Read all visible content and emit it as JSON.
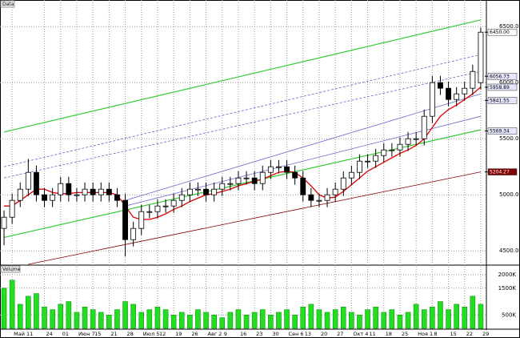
{
  "chart_data": {
    "type": "candlestick",
    "title": "Data",
    "categories": [
      null,
      "Май 11",
      null,
      null,
      null,
      "24",
      null,
      "01",
      null,
      "Июн 7",
      null,
      "15",
      null,
      "21",
      null,
      "28",
      null,
      "Июл 5",
      null,
      "12",
      null,
      "19",
      null,
      "26",
      null,
      "Авг 2",
      null,
      "9",
      null,
      "16",
      null,
      "23",
      null,
      "30",
      null,
      "Сен 6",
      null,
      "13",
      null,
      "20",
      null,
      "27",
      null,
      "Окт 4",
      null,
      "11",
      null,
      "18",
      null,
      "25",
      null,
      "Ноя 1",
      null,
      "8",
      null,
      "15",
      null,
      "22",
      null,
      "29"
    ],
    "open": [
      4700,
      4800,
      4950,
      5050,
      5200,
      5000,
      4950,
      5000,
      5100,
      5000,
      5000,
      5050,
      5000,
      5050,
      5000,
      4950,
      4600,
      4700,
      4850,
      4850,
      4900,
      4900,
      4950,
      5000,
      5050,
      5050,
      5000,
      5050,
      5100,
      5100,
      5150,
      5150,
      5100,
      5200,
      5250,
      5250,
      5200,
      5150,
      5000,
      4950,
      4950,
      5000,
      5050,
      5150,
      5200,
      5300,
      5300,
      5350,
      5400,
      5400,
      5450,
      5500,
      5500,
      5700,
      6000,
      5950,
      5850,
      5900,
      5950,
      6000
    ],
    "high": [
      4860,
      5010,
      5110,
      5320,
      5260,
      5060,
      5060,
      5160,
      5160,
      5060,
      5110,
      5110,
      5110,
      5110,
      5060,
      5010,
      4760,
      4910,
      4910,
      4960,
      4960,
      5010,
      5060,
      5110,
      5110,
      5110,
      5110,
      5160,
      5160,
      5210,
      5210,
      5210,
      5260,
      5310,
      5310,
      5310,
      5260,
      5210,
      5060,
      5010,
      5060,
      5110,
      5210,
      5260,
      5360,
      5360,
      5410,
      5460,
      5460,
      5510,
      5560,
      5560,
      5760,
      6060,
      6060,
      6010,
      5960,
      6010,
      6160,
      6490
    ],
    "low": [
      4550,
      4740,
      4890,
      4990,
      4940,
      4890,
      4890,
      4940,
      4940,
      4940,
      4940,
      4940,
      4940,
      4940,
      4890,
      4450,
      4540,
      4640,
      4790,
      4790,
      4840,
      4840,
      4890,
      4940,
      4990,
      4940,
      4940,
      4990,
      5040,
      5040,
      5090,
      5040,
      5040,
      5140,
      5190,
      5140,
      5090,
      4940,
      4890,
      4890,
      4890,
      4940,
      4990,
      5090,
      5140,
      5240,
      5240,
      5290,
      5340,
      5340,
      5390,
      5440,
      5440,
      5640,
      5890,
      5790,
      5790,
      5840,
      5890,
      5940
    ],
    "close": [
      4800,
      4950,
      5050,
      5200,
      5000,
      4950,
      5000,
      5100,
      5000,
      5000,
      5050,
      5000,
      5050,
      5000,
      4950,
      4600,
      4700,
      4850,
      4850,
      4900,
      4900,
      4950,
      5000,
      5050,
      5050,
      5000,
      5050,
      5100,
      5100,
      5150,
      5150,
      5100,
      5200,
      5250,
      5250,
      5200,
      5150,
      5000,
      4950,
      4950,
      5000,
      5050,
      5150,
      5200,
      5300,
      5300,
      5350,
      5400,
      5400,
      5450,
      5500,
      5500,
      5700,
      6000,
      5950,
      5850,
      5900,
      5950,
      6100,
      6450
    ],
    "ylim": [
      4380,
      6680
    ],
    "yticks": [
      {
        "value": 4500,
        "label": "4500.00"
      },
      {
        "value": 5000,
        "label": "5000.00"
      },
      {
        "value": 5500,
        "label": "5500.00"
      },
      {
        "value": 6000,
        "label": "6000.00"
      },
      {
        "value": 6500,
        "label": "6500.00"
      }
    ],
    "grid": true,
    "moving_average": {
      "color": "#e00000",
      "values": [
        4900,
        4900,
        4950,
        5000,
        5050,
        5050,
        5020,
        5010,
        5010,
        5020,
        5020,
        5020,
        5020,
        5020,
        5000,
        4900,
        4800,
        4780,
        4780,
        4800,
        4830,
        4870,
        4900,
        4940,
        4970,
        5000,
        5010,
        5030,
        5050,
        5080,
        5100,
        5120,
        5140,
        5170,
        5200,
        5210,
        5200,
        5150,
        5080,
        5000,
        4970,
        4980,
        5030,
        5090,
        5150,
        5210,
        5250,
        5290,
        5330,
        5370,
        5400,
        5440,
        5500,
        5600,
        5700,
        5760,
        5800,
        5850,
        5900,
        5960
      ]
    },
    "trendlines": [
      {
        "color": "#33cc33",
        "x": [
          0,
          59
        ],
        "values": [
          5560,
          6560
        ]
      },
      {
        "color": "#33cc33",
        "x": [
          0,
          59
        ],
        "values": [
          4620,
          5580
        ]
      },
      {
        "color": "#6666cc",
        "x": [
          15,
          59
        ],
        "values": [
          4900,
          5700
        ]
      },
      {
        "color": "#6666cc",
        "x": [
          15,
          59
        ],
        "values": [
          4950,
          5900
        ]
      },
      {
        "color": "#6666cc",
        "x": [
          0,
          59
        ],
        "values": [
          5150,
          6100
        ]
      },
      {
        "color": "#6666cc",
        "x": [
          0,
          59
        ],
        "values": [
          5250,
          6250
        ]
      },
      {
        "color": "#800000",
        "x": [
          3,
          59
        ],
        "values": [
          4380,
          5204
        ]
      }
    ],
    "price_markers": [
      {
        "value": 6450,
        "label": "6450.00"
      },
      {
        "value": 6056.73,
        "label": "6056.73"
      },
      {
        "value": 5958.89,
        "label": "5958.89"
      },
      {
        "value": 5841.55,
        "label": "5841.55"
      },
      {
        "value": 5569.34,
        "label": "5569.34"
      },
      {
        "value": 5204.27,
        "label": "5204.27"
      }
    ],
    "volume": {
      "title": "Volume",
      "color": "#22dd22",
      "values": [
        1500000,
        1800000,
        900000,
        1200000,
        1300000,
        800000,
        700000,
        900000,
        1000000,
        600000,
        800000,
        700000,
        600000,
        500000,
        700000,
        1000000,
        900000,
        600000,
        700000,
        800000,
        700000,
        500000,
        600000,
        500000,
        700000,
        600000,
        500000,
        400000,
        600000,
        700000,
        500000,
        600000,
        700000,
        500000,
        600000,
        700000,
        500000,
        800000,
        900000,
        700000,
        600000,
        700000,
        800000,
        600000,
        500000,
        700000,
        800000,
        600000,
        700000,
        500000,
        600000,
        900000,
        700000,
        800000,
        1000000,
        700000,
        900000,
        800000,
        1200000,
        900000
      ],
      "ylim": [
        0,
        2300000
      ],
      "yticks": [
        {
          "value": 500000,
          "label": "500K"
        },
        {
          "value": 1500000,
          "label": "1500K"
        },
        {
          "value": 2000000,
          "label": "2000K"
        }
      ]
    }
  }
}
